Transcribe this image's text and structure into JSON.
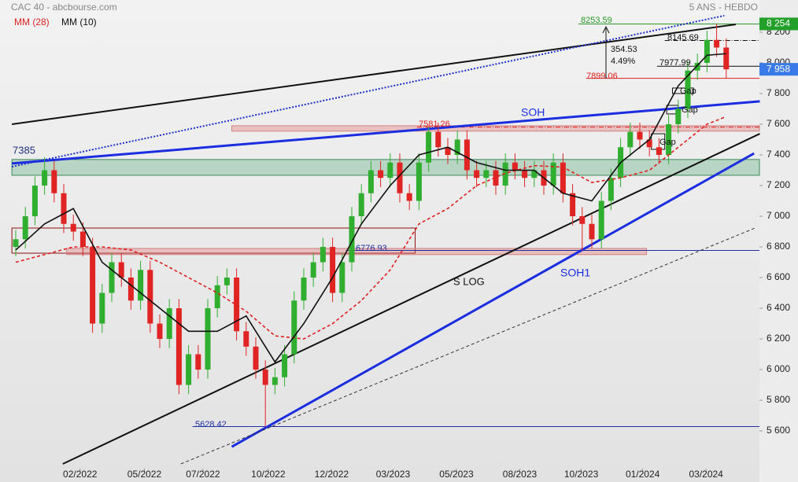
{
  "chart_data": {
    "type": "candlestick",
    "title": "CAC 40 - abcbourse.com",
    "subtitle": "5 ANS - HEBDO",
    "xlim": [
      -1.64,
      77.46
    ],
    "ylim": [
      5267,
      8410
    ],
    "yticks": [
      {
        "value": 5600,
        "label": "5 600"
      },
      {
        "value": 5800,
        "label": "5 800"
      },
      {
        "value": 6000,
        "label": "6 000"
      },
      {
        "value": 6200,
        "label": "6 200"
      },
      {
        "value": 6400,
        "label": "6 400"
      },
      {
        "value": 6600,
        "label": "6 600"
      },
      {
        "value": 6800,
        "label": "6 800"
      },
      {
        "value": 7000,
        "label": "7 000"
      },
      {
        "value": 7200,
        "label": "7 200"
      },
      {
        "value": 7400,
        "label": "7 400"
      },
      {
        "value": 7600,
        "label": "7 600"
      },
      {
        "value": 7800,
        "label": "7 800"
      },
      {
        "value": 8000,
        "label": "8 000"
      },
      {
        "value": 8200,
        "label": "8 200"
      }
    ],
    "xticks": [
      {
        "value": 6.7,
        "label": "02/2022"
      },
      {
        "value": 13.4,
        "label": "05/2022"
      },
      {
        "value": 19.5,
        "label": "07/2022"
      },
      {
        "value": 26.3,
        "label": "10/2022"
      },
      {
        "value": 32.9,
        "label": "12/2022"
      },
      {
        "value": 39.3,
        "label": "03/2023"
      },
      {
        "value": 45.9,
        "label": "05/2023"
      },
      {
        "value": 52.5,
        "label": "08/2023"
      },
      {
        "value": 58.9,
        "label": "10/2023"
      },
      {
        "value": 65.3,
        "label": "01/2024"
      },
      {
        "value": 71.9,
        "label": "03/2024"
      }
    ],
    "up_color": "#2fae2f",
    "down_color": "#e02424",
    "candles": [
      [
        6800,
        6910,
        6740,
        6850
      ],
      [
        6850,
        7060,
        6790,
        7000
      ],
      [
        7000,
        7260,
        6940,
        7200
      ],
      [
        7200,
        7385,
        7140,
        7300
      ],
      [
        7300,
        7360,
        7090,
        7150
      ],
      [
        7150,
        7210,
        6890,
        6950
      ],
      [
        6950,
        7010,
        6840,
        6900
      ],
      [
        6900,
        6960,
        6740,
        6800
      ],
      [
        6800,
        6860,
        6240,
        6300
      ],
      [
        6300,
        6560,
        6240,
        6500
      ],
      [
        6500,
        6760,
        6440,
        6700
      ],
      [
        6700,
        6760,
        6540,
        6600
      ],
      [
        6600,
        6660,
        6390,
        6450
      ],
      [
        6450,
        6710,
        6390,
        6650
      ],
      [
        6650,
        6710,
        6240,
        6300
      ],
      [
        6300,
        6360,
        6140,
        6200
      ],
      [
        6200,
        6460,
        6140,
        6400
      ],
      [
        6400,
        6460,
        5840,
        5900
      ],
      [
        5900,
        6160,
        5840,
        6100
      ],
      [
        6100,
        6160,
        5940,
        6000
      ],
      [
        6000,
        6460,
        5940,
        6400
      ],
      [
        6400,
        6610,
        6340,
        6550
      ],
      [
        6550,
        6660,
        6490,
        6600
      ],
      [
        6600,
        6660,
        6190,
        6250
      ],
      [
        6250,
        6310,
        6090,
        6150
      ],
      [
        6150,
        6210,
        5940,
        6000
      ],
      [
        6000,
        6060,
        5628.42,
        5900
      ],
      [
        5900,
        6010,
        5840,
        5950
      ],
      [
        5950,
        6160,
        5890,
        6100
      ],
      [
        6100,
        6510,
        6040,
        6450
      ],
      [
        6450,
        6660,
        6390,
        6600
      ],
      [
        6600,
        6760,
        6540,
        6700
      ],
      [
        6700,
        6860,
        6640,
        6800
      ],
      [
        6800,
        6860,
        6440,
        6500
      ],
      [
        6500,
        6760,
        6440,
        6700
      ],
      [
        6700,
        7060,
        6640,
        7000
      ],
      [
        7000,
        7210,
        6940,
        7150
      ],
      [
        7150,
        7360,
        7090,
        7300
      ],
      [
        7300,
        7360,
        7190,
        7250
      ],
      [
        7250,
        7410,
        7190,
        7350
      ],
      [
        7350,
        7410,
        7090,
        7150
      ],
      [
        7150,
        7210,
        7040,
        7100
      ],
      [
        7100,
        7410,
        7040,
        7350
      ],
      [
        7350,
        7581.26,
        7290,
        7550
      ],
      [
        7550,
        7610,
        7390,
        7450
      ],
      [
        7450,
        7510,
        7340,
        7400
      ],
      [
        7400,
        7560,
        7340,
        7500
      ],
      [
        7500,
        7560,
        7240,
        7300
      ],
      [
        7300,
        7360,
        7190,
        7250
      ],
      [
        7250,
        7360,
        7190,
        7300
      ],
      [
        7300,
        7360,
        7140,
        7200
      ],
      [
        7200,
        7410,
        7140,
        7350
      ],
      [
        7350,
        7410,
        7240,
        7300
      ],
      [
        7300,
        7360,
        7190,
        7250
      ],
      [
        7250,
        7360,
        7190,
        7300
      ],
      [
        7300,
        7360,
        7140,
        7200
      ],
      [
        7200,
        7410,
        7140,
        7350
      ],
      [
        7350,
        7410,
        7090,
        7150
      ],
      [
        7150,
        7210,
        6940,
        7000
      ],
      [
        7000,
        7060,
        6776.93,
        6950
      ],
      [
        6950,
        7010,
        6790,
        6850
      ],
      [
        6850,
        7160,
        6790,
        7100
      ],
      [
        7100,
        7310,
        7040,
        7250
      ],
      [
        7250,
        7510,
        7190,
        7450
      ],
      [
        7450,
        7610,
        7390,
        7550
      ],
      [
        7550,
        7610,
        7440,
        7500
      ],
      [
        7500,
        7560,
        7390,
        7450
      ],
      [
        7450,
        7510,
        7340,
        7400
      ],
      [
        7400,
        7660,
        7340,
        7600
      ],
      [
        7600,
        7760,
        7540,
        7700
      ],
      [
        7700,
        8010,
        7640,
        7950
      ],
      [
        7950,
        8060,
        7890,
        8000
      ],
      [
        8000,
        8210,
        7940,
        8150
      ],
      [
        8150,
        8253.59,
        8040,
        8100
      ],
      [
        8100,
        8160,
        7900,
        7958
      ]
    ],
    "series": [
      {
        "name": "MM (28)",
        "color": "#e02020",
        "dash": true,
        "x": [
          0,
          3,
          6,
          9,
          12,
          15,
          18,
          21,
          24,
          27,
          30,
          33,
          36,
          39,
          42,
          45,
          48,
          51,
          54,
          57,
          60,
          63,
          66,
          69,
          72,
          74
        ],
        "values": [
          6700,
          6750,
          6800,
          6800,
          6780,
          6700,
          6600,
          6500,
          6380,
          6220,
          6200,
          6300,
          6450,
          6650,
          6950,
          7050,
          7200,
          7280,
          7330,
          7320,
          7220,
          7250,
          7300,
          7450,
          7600,
          7650
        ]
      },
      {
        "name": "MM (10)",
        "color": "#111111",
        "dash": false,
        "x": [
          0,
          3,
          6,
          9,
          12,
          15,
          18,
          21,
          24,
          27,
          30,
          33,
          36,
          39,
          42,
          45,
          48,
          51,
          54,
          57,
          60,
          63,
          66,
          69,
          72,
          74
        ],
        "values": [
          6780,
          6950,
          7050,
          6700,
          6550,
          6400,
          6250,
          6250,
          6350,
          6050,
          6300,
          6600,
          6950,
          7200,
          7400,
          7450,
          7350,
          7300,
          7300,
          7150,
          7100,
          7350,
          7500,
          7850,
          8050,
          8060
        ]
      }
    ],
    "lines": [
      {
        "color": "#111111",
        "x": [
          -0.4,
          75
        ],
        "values": [
          7600,
          8251
        ]
      },
      {
        "color": "#2030c8",
        "dotted": true,
        "x": [
          -0.4,
          73.8
        ],
        "values": [
          7323,
          8308
        ]
      },
      {
        "name": "SOH",
        "color": "#1a2ee0",
        "x": [
          -0.4,
          77.5
        ],
        "values": [
          7344,
          7749
        ]
      },
      {
        "name": "S LOG",
        "color": "#111111",
        "x": [
          4.9,
          77.5
        ],
        "values": [
          5385,
          7538
        ]
      },
      {
        "name": "SOH1",
        "color": "#1a2ee0",
        "x": [
          22.5,
          76.9
        ],
        "values": [
          5497,
          7410
        ]
      },
      {
        "color": "#333333",
        "dotted": true,
        "x": [
          17.2,
          77
        ],
        "values": [
          5385,
          6923
        ]
      }
    ],
    "levels": [
      {
        "value": 8253.59,
        "color": "#2a9a2a",
        "x": [
          58.6,
          77.46
        ]
      },
      {
        "value": 8145.69,
        "color": "#111111",
        "x": [
          67.6,
          77.46
        ]
      },
      {
        "value": 7977.99,
        "color": "#111111",
        "x": [
          66.8,
          77.46
        ]
      },
      {
        "value": 7899.06,
        "color": "#e02020",
        "x": [
          59.4,
          77.46
        ]
      },
      {
        "value": 7581.26,
        "color": "#e02020",
        "x": [
          41.8,
          77.46
        ]
      },
      {
        "value": 6776.93,
        "color": "#2030a0",
        "x": [
          34.4,
          77.46
        ]
      },
      {
        "value": 5628.42,
        "color": "#2030a0",
        "x": [
          18.4,
          77.46
        ]
      },
      {
        "value": 7385,
        "color": "#2030a0",
        "x": [
          -0.4,
          3.4
        ]
      }
    ],
    "change": 354.53,
    "change_pct": "4.49%",
    "zones": [
      {
        "x": [
          22.5,
          77.46
        ],
        "y": [
          7555,
          7590
        ],
        "fill": "rgba(225,110,110,0.35)",
        "stroke": "#d08080"
      },
      {
        "x": [
          -0.4,
          77.46
        ],
        "y": [
          7267,
          7370
        ],
        "fill": "rgba(90,170,120,0.35)",
        "stroke": "#3a8a5a"
      },
      {
        "x": [
          -0.4,
          41.6
        ],
        "y": [
          6759,
          6923
        ],
        "fill": "none",
        "stroke": "#8a1010"
      },
      {
        "x": [
          5.3,
          65.7
        ],
        "y": [
          6750,
          6790
        ],
        "fill": "rgba(225,110,110,0.35)",
        "stroke": "#d08080"
      },
      {
        "x": [
          68.4,
          70.6
        ],
        "y": [
          7800,
          7836
        ],
        "fill": "none",
        "stroke": "#111111",
        "name": "Gap"
      },
      {
        "x": [
          67.8,
          69.0
        ],
        "y": [
          7667,
          7723
        ],
        "fill": "none",
        "stroke": "#111111",
        "name": "Gap"
      },
      {
        "x": [
          66.2,
          67.6
        ],
        "y": [
          7436,
          7538
        ],
        "fill": "none",
        "stroke": "#111111",
        "name": "Gap"
      }
    ],
    "price_labels": [
      {
        "value": 8254,
        "label": "8 254",
        "color": "#22a02a"
      },
      {
        "value": 7958,
        "label": "7 958",
        "color": "#3a7ae8"
      }
    ]
  }
}
